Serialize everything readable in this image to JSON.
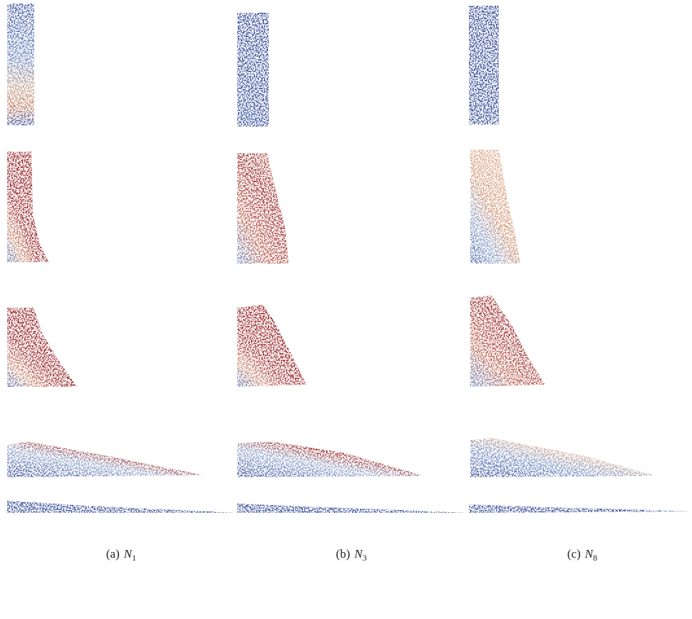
{
  "figure": {
    "captions": [
      {
        "tag": "(a)",
        "symbol": "N",
        "subscript": "1"
      },
      {
        "tag": "(b)",
        "symbol": "N",
        "subscript": "3"
      },
      {
        "tag": "(c)",
        "symbol": "N",
        "subscript": "8"
      }
    ]
  }
}
